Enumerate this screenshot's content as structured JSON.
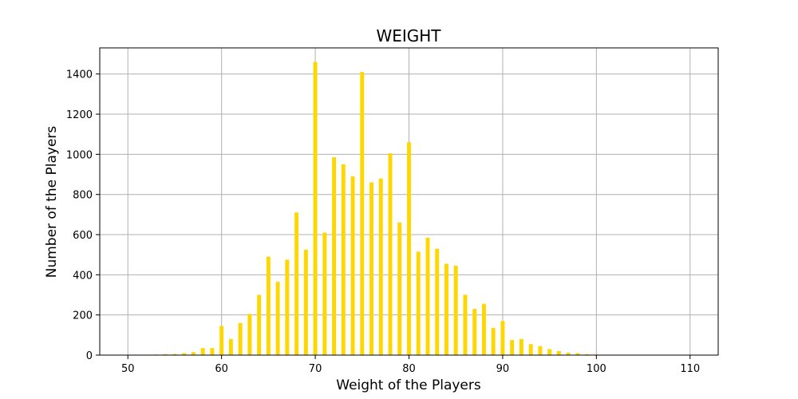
{
  "chart_data": {
    "type": "bar",
    "title": "WEIGHT",
    "xlabel": "Weight of the Players",
    "ylabel": "Number of the Players",
    "xlim": [
      47,
      113
    ],
    "ylim": [
      0,
      1530
    ],
    "xticks": [
      50,
      60,
      70,
      80,
      90,
      100,
      110
    ],
    "yticks": [
      0,
      200,
      400,
      600,
      800,
      1000,
      1200,
      1400
    ],
    "grid": true,
    "bar_color": "#ffd700",
    "x": [
      52,
      53,
      54,
      55,
      56,
      57,
      58,
      59,
      60,
      61,
      62,
      63,
      64,
      65,
      66,
      67,
      68,
      69,
      70,
      71,
      72,
      73,
      74,
      75,
      76,
      77,
      78,
      79,
      80,
      81,
      82,
      83,
      84,
      85,
      86,
      87,
      88,
      89,
      90,
      91,
      92,
      93,
      94,
      95,
      96,
      97,
      98,
      99,
      100,
      101,
      102,
      103,
      104
    ],
    "values": [
      2,
      3,
      5,
      6,
      10,
      15,
      35,
      35,
      145,
      80,
      160,
      205,
      300,
      490,
      365,
      475,
      710,
      525,
      1460,
      610,
      985,
      950,
      890,
      1410,
      860,
      880,
      1005,
      660,
      1060,
      515,
      585,
      530,
      455,
      445,
      300,
      230,
      255,
      135,
      170,
      75,
      80,
      55,
      45,
      30,
      20,
      12,
      10,
      5,
      3,
      2,
      1,
      1,
      1
    ]
  }
}
